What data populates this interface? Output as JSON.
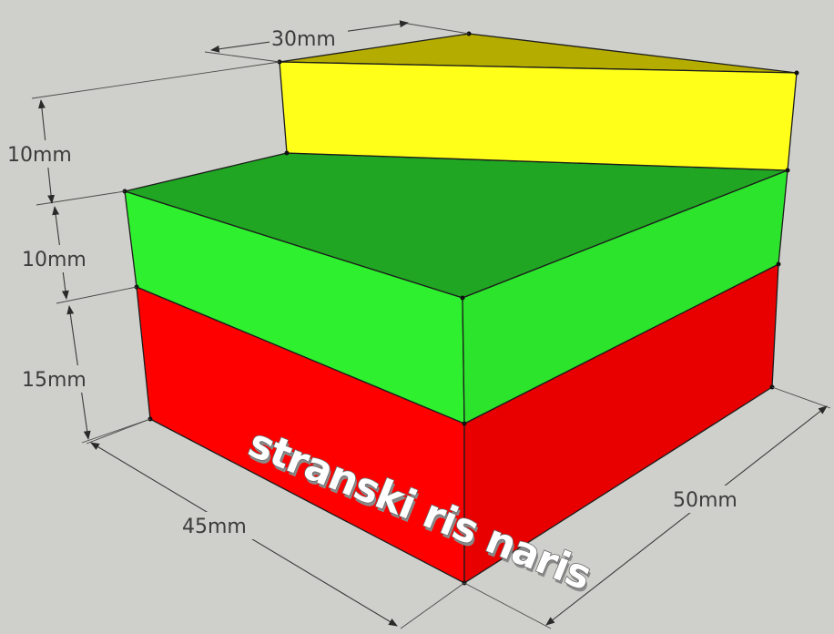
{
  "colors": {
    "background": "#cfcfcb",
    "yellow_top": "#b3aa00",
    "yellow_front": "#ffff1a",
    "green_top": "#1fa823",
    "green_side": "#2ef02e",
    "red_side": "#ff0000",
    "red_right": "#e30000"
  },
  "dimensions": {
    "top_width": "30mm",
    "step_height_top": "10mm",
    "step_height_mid": "10mm",
    "step_height_bottom": "15mm",
    "base_depth": "45mm",
    "base_width": "50mm"
  },
  "face_label": "stranski ris naris"
}
